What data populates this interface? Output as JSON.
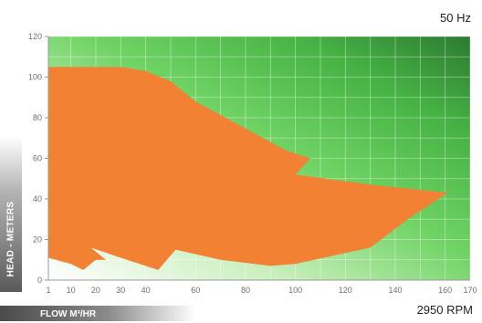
{
  "chart_data": {
    "type": "area",
    "frequency_label": "50 Hz",
    "speed_label": "2950 RPM",
    "xlabel": "FLOW M³/HR",
    "ylabel": "HEAD - METERS",
    "x_ticks": [
      1,
      10,
      20,
      30,
      40,
      60,
      80,
      100,
      120,
      140,
      160,
      170
    ],
    "y_ticks": [
      0,
      20,
      40,
      60,
      80,
      100,
      120
    ],
    "xlim": [
      1,
      170
    ],
    "ylim": [
      0,
      120
    ],
    "grid": true,
    "background": "green gradient",
    "fill_color": "#F28133",
    "outline": [
      [
        1,
        105
      ],
      [
        30,
        105
      ],
      [
        40,
        103
      ],
      [
        50,
        98
      ],
      [
        60,
        88
      ],
      [
        72,
        80
      ],
      [
        84,
        72
      ],
      [
        96,
        64
      ],
      [
        106,
        60
      ],
      [
        100,
        52
      ],
      [
        130,
        47
      ],
      [
        161,
        43
      ],
      [
        145,
        30
      ],
      [
        130,
        16
      ],
      [
        100,
        8
      ],
      [
        90,
        7
      ],
      [
        70,
        10
      ],
      [
        52,
        15
      ],
      [
        45,
        5
      ],
      [
        40,
        7
      ],
      [
        30,
        11
      ],
      [
        18,
        16
      ],
      [
        24,
        10
      ],
      [
        20,
        10
      ],
      [
        15,
        5
      ],
      [
        10,
        8
      ],
      [
        1,
        11
      ]
    ]
  }
}
